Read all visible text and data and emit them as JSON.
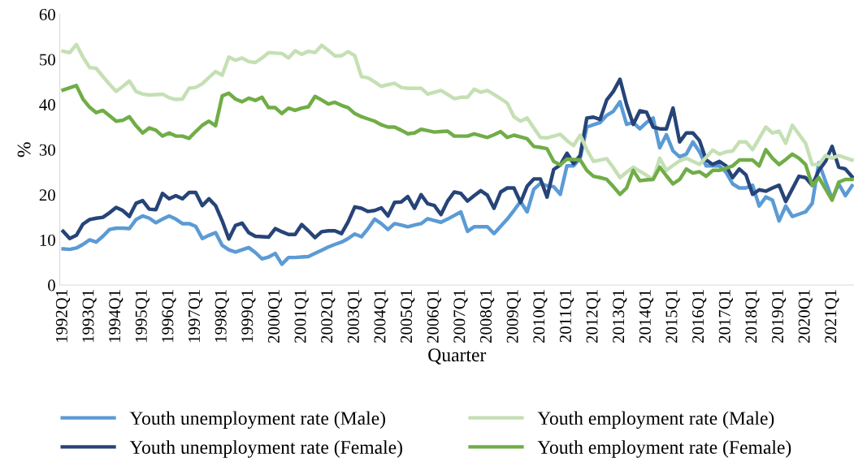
{
  "chart_data": {
    "type": "line",
    "xlabel": "Quarter",
    "ylabel": "%",
    "categories": [
      "1992Q1",
      null,
      null,
      null,
      "1993Q1",
      null,
      null,
      null,
      "1994Q1",
      null,
      null,
      null,
      "1995Q1",
      null,
      null,
      null,
      "1996Q1",
      null,
      null,
      null,
      "1997Q1",
      null,
      null,
      null,
      "1998Q1",
      null,
      null,
      null,
      "1999Q1",
      null,
      null,
      null,
      "2000Q1",
      null,
      null,
      null,
      "2001Q1",
      null,
      null,
      null,
      "2002Q1",
      null,
      null,
      null,
      "2003Q1",
      null,
      null,
      null,
      "2004Q1",
      null,
      null,
      null,
      "2005Q1",
      null,
      null,
      null,
      "2006Q1",
      null,
      null,
      null,
      "2007Q1",
      null,
      null,
      null,
      "2008Q1",
      null,
      null,
      null,
      "2009Q1",
      null,
      null,
      null,
      "2010Q1",
      null,
      null,
      null,
      "2011Q1",
      null,
      null,
      null,
      "2012Q1",
      null,
      null,
      null,
      "2013Q1",
      null,
      null,
      null,
      "2014Q1",
      null,
      null,
      null,
      "2015Q1",
      null,
      null,
      null,
      "2016Q1",
      null,
      null,
      null,
      "2017Q1",
      null,
      null,
      null,
      "2018Q1",
      null,
      null,
      null,
      "2019Q1",
      null,
      null,
      null,
      "2020Q1",
      null,
      null,
      null,
      "2021Q1",
      null,
      null,
      null
    ],
    "ylim": [
      0,
      60
    ],
    "yticks": [
      0,
      10,
      20,
      30,
      40,
      50,
      60
    ],
    "grid": false,
    "legend": "bottom",
    "marker": "none",
    "line_style": "solid",
    "series": [
      {
        "name": "Youth unemployment rate (Male)",
        "color": "#5b9bd5",
        "values": [
          8.0,
          7.9,
          8.2,
          9.0,
          10.0,
          9.5,
          10.8,
          12.3,
          12.6,
          12.6,
          12.5,
          14.5,
          15.3,
          14.8,
          13.8,
          14.6,
          15.3,
          14.6,
          13.6,
          13.6,
          13.0,
          10.3,
          11.0,
          11.6,
          8.8,
          7.8,
          7.3,
          7.8,
          8.3,
          7.2,
          5.8,
          6.2,
          7.0,
          4.6,
          6.1,
          6.1,
          6.2,
          6.3,
          7.0,
          7.7,
          8.4,
          9.0,
          9.5,
          10.3,
          11.3,
          10.7,
          12.5,
          14.6,
          13.6,
          12.3,
          13.6,
          13.3,
          12.9,
          13.3,
          13.6,
          14.7,
          14.3,
          13.9,
          14.6,
          15.4,
          16.2,
          11.9,
          12.9,
          12.9,
          12.9,
          11.4,
          13.0,
          14.6,
          16.5,
          18.5,
          16.2,
          21.2,
          22.5,
          22.0,
          21.8,
          20.1,
          26.4,
          26.4,
          28.1,
          35.0,
          35.5,
          36.0,
          37.6,
          38.5,
          40.6,
          35.6,
          36.0,
          34.6,
          36.0,
          37.0,
          30.4,
          33.3,
          29.7,
          28.4,
          29.0,
          31.7,
          29.5,
          26.4,
          26.4,
          26.4,
          25.0,
          22.4,
          21.5,
          21.5,
          22.1,
          17.5,
          19.5,
          18.8,
          14.2,
          17.5,
          15.2,
          15.7,
          16.2,
          18.1,
          27.1,
          23.0,
          19.1,
          22.4,
          19.8,
          22.0
        ]
      },
      {
        "name": "Youth unemployment rate (Female)",
        "color": "#264478",
        "values": [
          11.9,
          10.3,
          11.0,
          13.5,
          14.5,
          14.8,
          15.0,
          16.0,
          17.2,
          16.5,
          15.2,
          18.1,
          18.7,
          16.8,
          16.7,
          20.3,
          19.1,
          19.8,
          19.1,
          20.5,
          20.5,
          17.6,
          19.1,
          17.6,
          14.2,
          10.2,
          13.2,
          13.7,
          11.6,
          10.8,
          10.7,
          10.6,
          12.5,
          11.8,
          11.2,
          11.2,
          13.4,
          12.0,
          10.5,
          11.8,
          12.0,
          12.0,
          11.4,
          14.0,
          17.3,
          17.0,
          16.3,
          16.5,
          17.1,
          15.3,
          18.3,
          18.4,
          19.6,
          17.0,
          20.0,
          18.0,
          17.6,
          15.6,
          18.6,
          20.6,
          20.3,
          18.6,
          19.8,
          20.9,
          19.9,
          17.0,
          20.6,
          21.5,
          21.5,
          18.3,
          21.9,
          23.5,
          23.5,
          19.5,
          25.6,
          26.6,
          29.2,
          26.9,
          28.7,
          37.0,
          37.2,
          36.7,
          41.0,
          42.9,
          45.6,
          40.0,
          35.6,
          38.6,
          38.3,
          35.0,
          34.6,
          34.6,
          39.2,
          31.7,
          33.7,
          33.7,
          32.0,
          27.7,
          26.7,
          27.4,
          26.4,
          23.8,
          25.7,
          24.4,
          20.1,
          21.1,
          20.8,
          21.5,
          22.1,
          18.5,
          21.3,
          24.1,
          23.8,
          22.1,
          25.4,
          27.4,
          30.7,
          26.1,
          25.7,
          24.0
        ]
      },
      {
        "name": "Youth employment rate (Male)",
        "color": "#c5e0b4",
        "values": [
          51.8,
          51.5,
          53.3,
          50.5,
          48.2,
          48.0,
          46.2,
          44.5,
          42.9,
          44.0,
          45.2,
          42.9,
          42.3,
          42.1,
          42.2,
          42.3,
          41.5,
          41.1,
          41.2,
          43.6,
          43.8,
          44.6,
          46.0,
          47.3,
          46.5,
          50.5,
          49.8,
          50.3,
          49.5,
          49.3,
          50.3,
          51.5,
          51.4,
          51.3,
          50.3,
          51.9,
          51.1,
          51.8,
          51.5,
          53.1,
          52.0,
          50.8,
          50.8,
          51.7,
          50.8,
          46.2,
          45.9,
          45.0,
          44.0,
          44.4,
          44.7,
          43.8,
          43.6,
          43.6,
          43.6,
          42.3,
          42.7,
          43.1,
          42.2,
          41.3,
          41.6,
          41.6,
          43.4,
          42.7,
          43.1,
          42.2,
          41.3,
          40.3,
          37.3,
          36.3,
          37.0,
          34.8,
          32.7,
          32.6,
          33.0,
          33.4,
          32.0,
          30.9,
          33.2,
          30.0,
          27.4,
          27.7,
          28.0,
          26.0,
          23.8,
          25.0,
          26.1,
          25.2,
          24.3,
          23.4,
          28.1,
          25.4,
          26.5,
          27.5,
          28.1,
          27.4,
          26.7,
          28.3,
          29.9,
          29.0,
          29.5,
          29.7,
          31.7,
          31.7,
          30.0,
          32.5,
          35.0,
          33.7,
          34.1,
          31.4,
          35.4,
          33.4,
          31.4,
          26.7,
          26.7,
          28.7,
          28.1,
          28.7,
          28.2,
          27.7
        ]
      },
      {
        "name": "Youth employment rate (Female)",
        "color": "#70ad47",
        "values": [
          43.2,
          43.7,
          44.2,
          41.2,
          39.4,
          38.2,
          38.7,
          37.5,
          36.3,
          36.5,
          37.3,
          35.3,
          33.7,
          34.8,
          34.3,
          33.0,
          33.7,
          33.0,
          33.0,
          32.5,
          34.0,
          35.4,
          36.3,
          35.3,
          41.9,
          42.5,
          41.2,
          40.6,
          41.4,
          40.9,
          41.6,
          39.3,
          39.3,
          38.0,
          39.2,
          38.7,
          39.2,
          39.5,
          41.8,
          41.0,
          40.1,
          40.5,
          39.8,
          39.3,
          38.0,
          37.3,
          36.8,
          36.3,
          35.5,
          35.0,
          35.0,
          34.3,
          33.5,
          33.7,
          34.5,
          34.2,
          33.9,
          34.0,
          34.1,
          33.0,
          33.0,
          33.0,
          33.5,
          33.1,
          32.7,
          33.3,
          34.0,
          32.7,
          33.2,
          32.8,
          32.4,
          30.7,
          30.5,
          30.2,
          27.4,
          26.6,
          27.9,
          27.8,
          27.7,
          25.4,
          24.1,
          23.8,
          23.4,
          21.8,
          20.1,
          21.5,
          25.4,
          23.1,
          23.3,
          23.4,
          26.1,
          24.2,
          22.4,
          23.4,
          25.7,
          24.8,
          25.1,
          24.1,
          25.4,
          25.4,
          25.9,
          26.4,
          27.7,
          27.7,
          27.7,
          26.4,
          30.0,
          28.1,
          26.7,
          27.8,
          29.0,
          28.1,
          26.7,
          22.1,
          23.8,
          21.3,
          18.8,
          22.8,
          23.4,
          23.4
        ]
      }
    ]
  }
}
